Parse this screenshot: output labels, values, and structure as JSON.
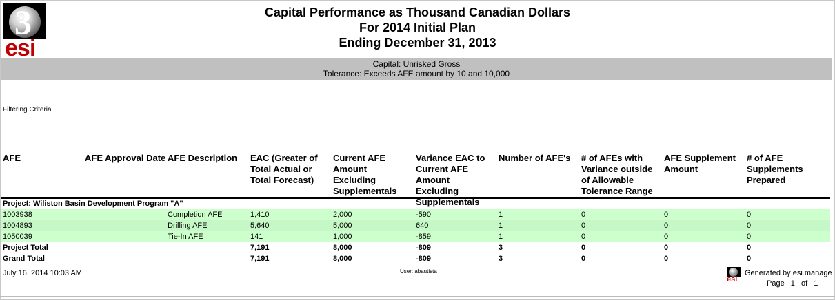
{
  "report": {
    "title1": "Capital Performance as Thousand Canadian Dollars",
    "title2": "For 2014 Initial Plan",
    "title3": "Ending December 31, 2013",
    "capital_line": "Capital: Unrisked Gross",
    "tolerance_line": "Tolerance: Exceeds AFE amount by 10 and 10,000",
    "filtering_criteria": "Filtering Criteria",
    "logo_text": "esi",
    "logo_digit": "3"
  },
  "headers": {
    "afe": "AFE",
    "approval_date": "AFE Approval Date",
    "description": "AFE Description",
    "eac": "EAC (Greater of Total Actual or Total Forecast)",
    "current_amount": "Current AFE Amount Excluding Supplementals",
    "variance": "Variance EAC to Current AFE Amount Excluding Supplementals",
    "num_afes": "Number of AFE's",
    "num_variance": "# of AFEs with Variance outside of Allowable Tolerance Range",
    "supp_amount": "AFE Supplement Amount",
    "supp_prepared": "# of AFE Supplements Prepared"
  },
  "project": {
    "label": "Project: Wiliston Basin Development Program \"A\"",
    "rows": [
      {
        "afe": "1003938",
        "description": "Completion AFE",
        "eac": "1,410",
        "current": "2,000",
        "variance": "-590",
        "num": "1",
        "num_var": "0",
        "supp": "0",
        "supp_prep": "0"
      },
      {
        "afe": "1004893",
        "description": "Drilling AFE",
        "eac": "5,640",
        "current": "5,000",
        "variance": "640",
        "num": "1",
        "num_var": "0",
        "supp": "0",
        "supp_prep": "0"
      },
      {
        "afe": "1050039",
        "description": "Tie-In AFE",
        "eac": "141",
        "current": "1,000",
        "variance": "-859",
        "num": "1",
        "num_var": "0",
        "supp": "0",
        "supp_prep": "0"
      }
    ],
    "total": {
      "label": "Project Total",
      "eac": "7,191",
      "current": "8,000",
      "variance": "-809",
      "num": "3",
      "num_var": "0",
      "supp": "0",
      "supp_prep": "0"
    }
  },
  "grand_total": {
    "label": "Grand Total",
    "eac": "7,191",
    "current": "8,000",
    "variance": "-809",
    "num": "3",
    "num_var": "0",
    "supp": "0",
    "supp_prep": "0"
  },
  "footer": {
    "date": "July 16, 2014 10:03 AM",
    "user": "User: abautista",
    "generated": "Generated by esi.manage",
    "page_label": "Page",
    "page_num": "1",
    "of_label": "of",
    "page_total": "1",
    "mini_logo_text": "esi"
  },
  "colors": {
    "row_green": "#ccffcc",
    "band_gray": "#c0c0c0",
    "brand_red": "#c00000"
  }
}
